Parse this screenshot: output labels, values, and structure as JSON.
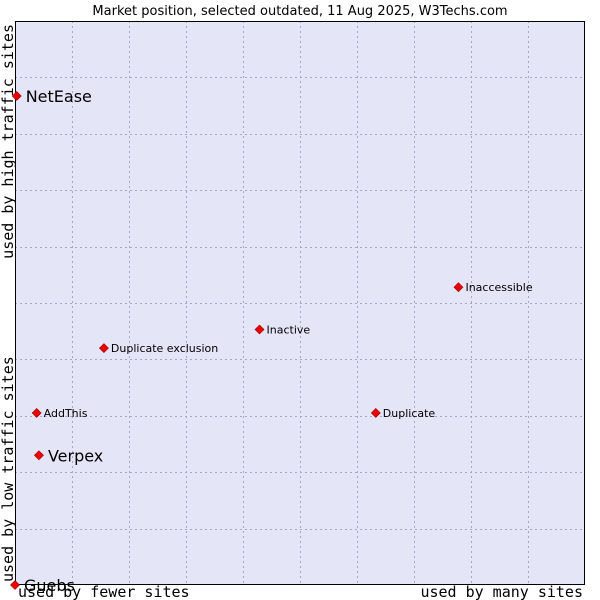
{
  "chart_data": {
    "type": "scatter",
    "title": "Market position, selected outdated, 11 Aug 2025, W3Techs.com",
    "xlabel_left": "used by fewer sites",
    "xlabel_right": "used by many sites",
    "ylabel_bottom": "used by low traffic sites",
    "ylabel_top": "used by high traffic sites",
    "xlim": [
      0,
      100
    ],
    "ylim": [
      0,
      100
    ],
    "grid": true,
    "colors": {
      "plot_background": "#e4e6f8",
      "marker": "#ee0000",
      "frame": "#000000"
    },
    "points": [
      {
        "name": "NetEase",
        "x": 0.3,
        "y": 86.7,
        "size": "large"
      },
      {
        "name": "Inaccessible",
        "x": 77.8,
        "y": 52.8,
        "size": "small"
      },
      {
        "name": "Inactive",
        "x": 42.9,
        "y": 45.3,
        "size": "small"
      },
      {
        "name": "Duplicate exclusion",
        "x": 15.6,
        "y": 42.0,
        "size": "small"
      },
      {
        "name": "AddThis",
        "x": 3.8,
        "y": 30.5,
        "size": "small"
      },
      {
        "name": "Duplicate",
        "x": 63.3,
        "y": 30.5,
        "size": "small"
      },
      {
        "name": "Verpex",
        "x": 4.2,
        "y": 23.0,
        "size": "large"
      },
      {
        "name": "Guebs",
        "x": 0.0,
        "y": 0.0,
        "size": "large"
      }
    ]
  }
}
